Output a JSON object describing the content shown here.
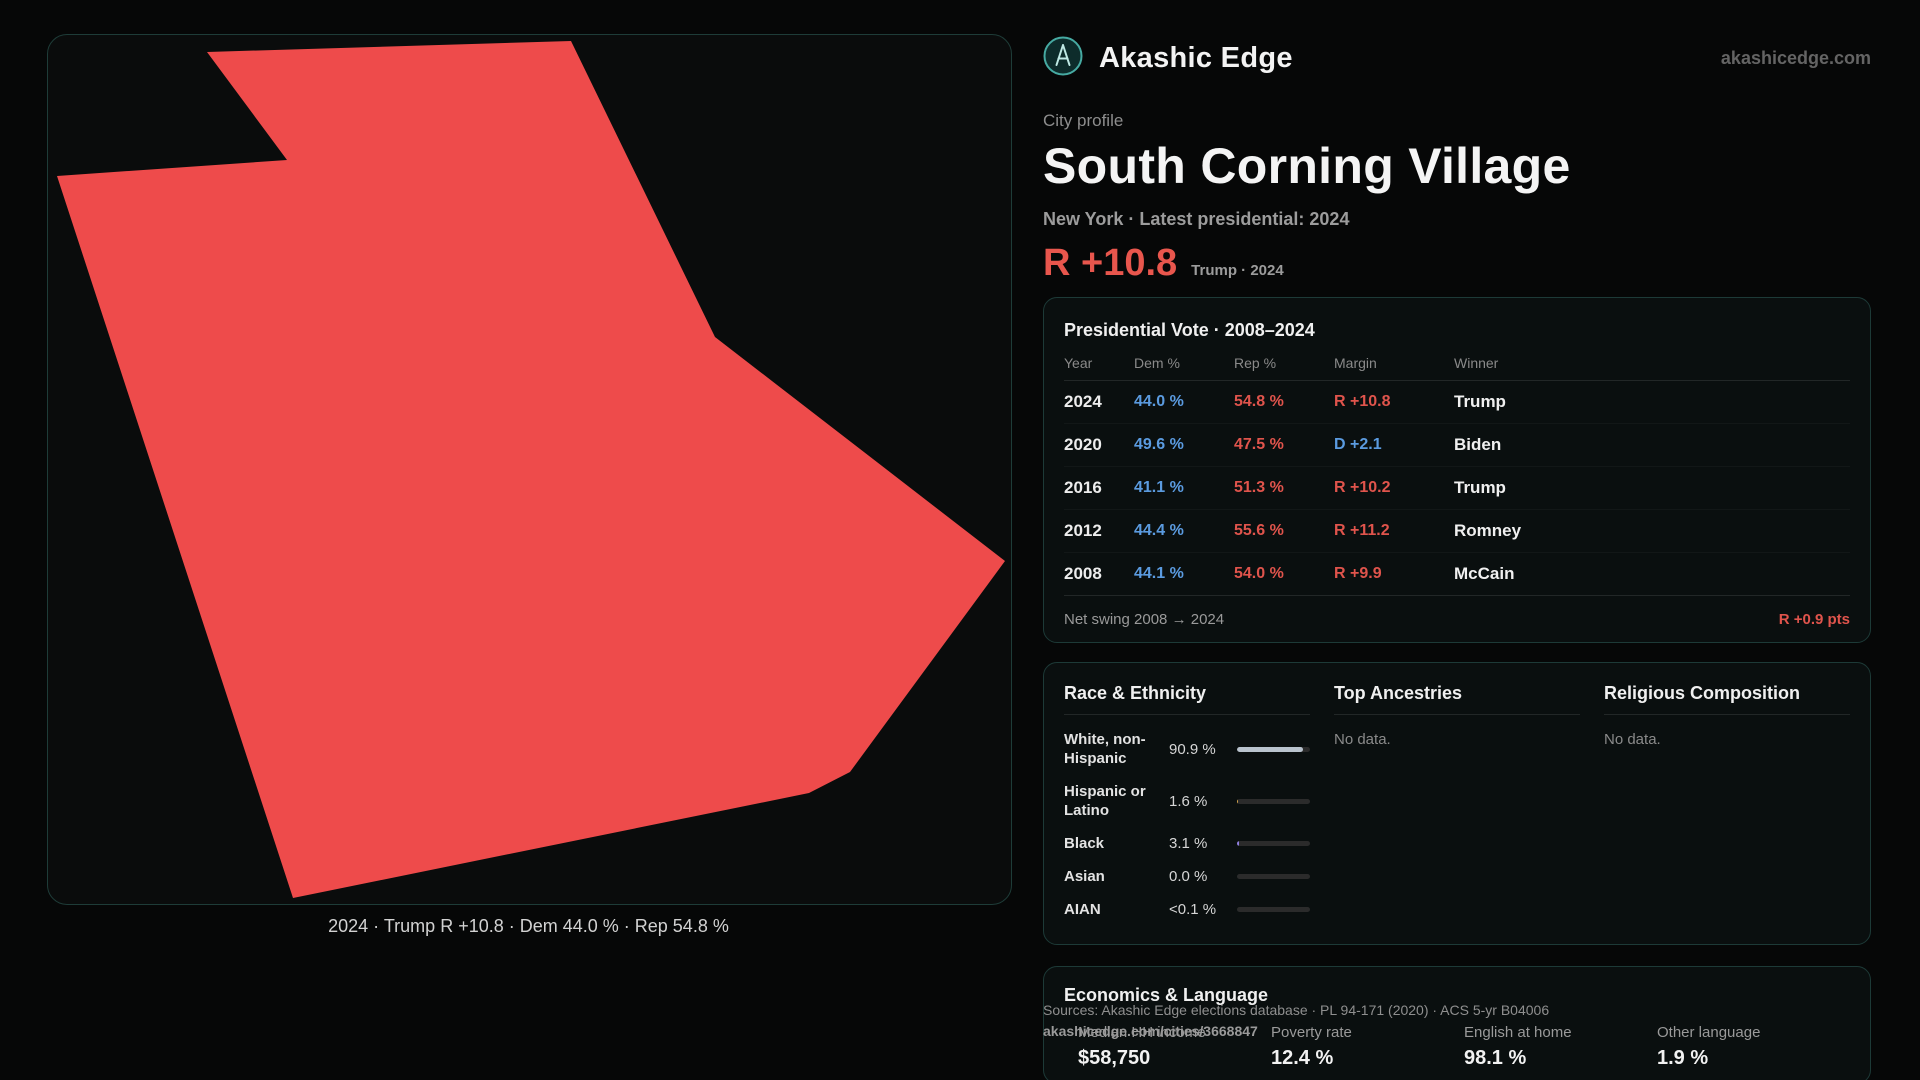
{
  "brand": {
    "name": "Akashic Edge",
    "domain": "akashicedge.com"
  },
  "map": {
    "fill": "#ee4b4b",
    "caption": "2024 · Trump R +10.8 · Dem 44.0 % · Rep 54.8 %"
  },
  "profile": {
    "kicker": "City profile",
    "title": "South Corning Village",
    "subtitle": "New York · Latest presidential: 2024",
    "headline_margin": "R +10.8",
    "headline_note": "Trump · 2024"
  },
  "vote_table": {
    "title": "Presidential Vote · 2008–2024",
    "columns": [
      "Year",
      "Dem %",
      "Rep %",
      "Margin",
      "Winner"
    ],
    "rows": [
      {
        "year": "2024",
        "dem": "44.0 %",
        "rep": "54.8 %",
        "margin": "R +10.8",
        "margin_party": "R",
        "winner": "Trump"
      },
      {
        "year": "2020",
        "dem": "49.6 %",
        "rep": "47.5 %",
        "margin": "D +2.1",
        "margin_party": "D",
        "winner": "Biden"
      },
      {
        "year": "2016",
        "dem": "41.1 %",
        "rep": "51.3 %",
        "margin": "R +10.2",
        "margin_party": "R",
        "winner": "Trump"
      },
      {
        "year": "2012",
        "dem": "44.4 %",
        "rep": "55.6 %",
        "margin": "R +11.2",
        "margin_party": "R",
        "winner": "Romney"
      },
      {
        "year": "2008",
        "dem": "44.1 %",
        "rep": "54.0 %",
        "margin": "R +9.9",
        "margin_party": "R",
        "winner": "McCain"
      }
    ],
    "footer_label": "Net swing 2008 → 2024",
    "footer_value": "R +0.9 pts"
  },
  "demographics": {
    "race": {
      "title": "Race & Ethnicity",
      "rows": [
        {
          "label": "White, non-Hispanic",
          "value": "90.9 %",
          "pct": 90.9,
          "bar_color": "#b9c3cd"
        },
        {
          "label": "Hispanic or Latino",
          "value": "1.6 %",
          "pct": 1.6,
          "bar_color": "#d2a24c"
        },
        {
          "label": "Black",
          "value": "3.1 %",
          "pct": 3.1,
          "bar_color": "#8f7fe0"
        },
        {
          "label": "Asian",
          "value": "0.0 %",
          "pct": 0,
          "bar_color": "#5fb38a"
        },
        {
          "label": "AIAN",
          "value": "<0.1 %",
          "pct": 0.1,
          "bar_color": "#c9b458"
        }
      ]
    },
    "ancestries": {
      "title": "Top Ancestries",
      "empty": "No data."
    },
    "religion": {
      "title": "Religious Composition",
      "empty": "No data."
    }
  },
  "economics": {
    "title": "Economics & Language",
    "stats": [
      {
        "label": "Median HH income",
        "value": "$58,750"
      },
      {
        "label": "Poverty rate",
        "value": "12.4 %"
      },
      {
        "label": "English at home",
        "value": "98.1 %"
      },
      {
        "label": "Other language",
        "value": "1.9 %"
      }
    ]
  },
  "footer": {
    "sources": "Sources: Akashic Edge elections database · PL 94-171 (2020) · ACS 5-yr B04006",
    "permalink": "akashicedge.com/cities/3668847"
  },
  "colors": {
    "rep": "#e0544c",
    "dem": "#5b9be0",
    "map_fill": "#ee4b4b",
    "card_border": "#1d3a37"
  }
}
